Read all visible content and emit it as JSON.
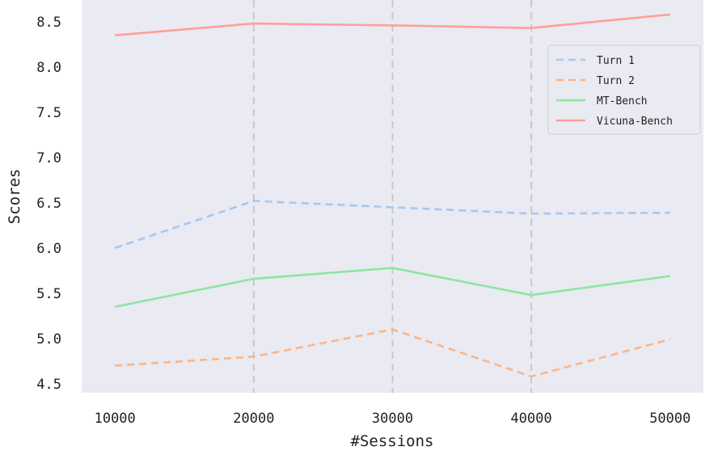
{
  "chart_data": {
    "type": "line",
    "title": "",
    "xlabel": "#Sessions",
    "ylabel": "Scores",
    "x": [
      10000,
      20000,
      30000,
      40000,
      50000
    ],
    "x_tick_labels": [
      "10000",
      "20000",
      "30000",
      "40000",
      "50000"
    ],
    "y_ticks": [
      4.5,
      5.0,
      5.5,
      6.0,
      6.5,
      7.0,
      7.5,
      8.0,
      8.5
    ],
    "y_tick_labels": [
      "4.5",
      "5.0",
      "5.5",
      "6.0",
      "6.5",
      "7.0",
      "7.5",
      "8.0",
      "8.5"
    ],
    "xlim": [
      7600,
      52400
    ],
    "ylim": [
      4.4,
      8.74
    ],
    "grid": "vertical dashed lines at 20000, 30000 and 40000",
    "background": "#eaeaf2",
    "legend_position": "top-right",
    "series": [
      {
        "name": "Turn 1",
        "style": "dashed",
        "color": "#a1c9f4",
        "values": [
          6.0,
          6.52,
          6.45,
          6.38,
          6.39
        ]
      },
      {
        "name": "Turn 2",
        "style": "dashed",
        "color": "#ffb482",
        "values": [
          4.7,
          4.8,
          5.1,
          4.58,
          4.99
        ]
      },
      {
        "name": "MT-Bench",
        "style": "solid",
        "color": "#8de5a1",
        "values": [
          5.35,
          5.66,
          5.78,
          5.48,
          5.69
        ]
      },
      {
        "name": "Vicuna-Bench",
        "style": "solid",
        "color": "#ff9f9b",
        "values": [
          8.35,
          8.48,
          8.46,
          8.43,
          8.58
        ]
      }
    ]
  }
}
